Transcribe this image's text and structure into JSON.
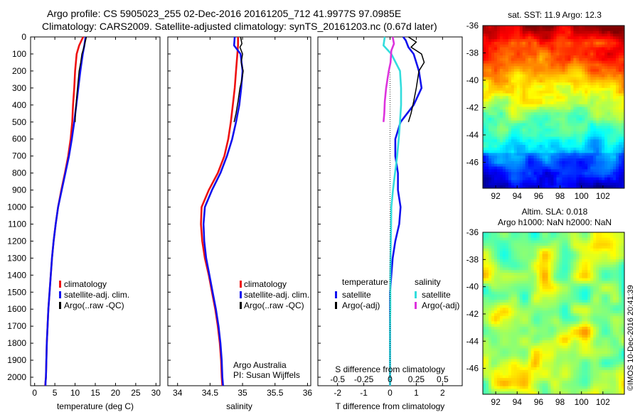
{
  "title": {
    "line1": "Argo profile: CS 5905023_255 02-Dec-2016 20161205_712 41.9977S 97.0985E",
    "line2": "Climatology: CARS2009. Satellite-adjusted climatology: synTS_20161203.nc (0.67d later)"
  },
  "colors": {
    "climatology": "#ee1111",
    "satellite": "#1111ee",
    "argo": "#000000",
    "salinity_satellite": "#33dddd",
    "salinity_argo": "#dd33dd"
  },
  "chart_data": [
    {
      "type": "line",
      "name": "temperature",
      "xlabel": "temperature (deg C)",
      "ylabel": "",
      "xlim": [
        -1,
        31
      ],
      "ylim": [
        2050,
        0
      ],
      "xticks": [
        "0",
        "5",
        "10",
        "15",
        "20",
        "25",
        "30"
      ],
      "yticks": [
        "0",
        "100",
        "200",
        "300",
        "400",
        "500",
        "600",
        "700",
        "800",
        "900",
        "1000",
        "1100",
        "1200",
        "1300",
        "1400",
        "1500",
        "1600",
        "1700",
        "1800",
        "1900",
        "2000"
      ],
      "legend": [
        "climatology",
        "satellite-adj. clim.",
        "Argo(..raw -QC)"
      ],
      "legend_position": "lower-center",
      "series": [
        {
          "name": "climatology",
          "color": "#ee1111",
          "x": [
            12.0,
            11.0,
            10.4,
            10.0,
            9.8,
            9.5,
            9.3,
            8.9,
            8.3,
            7.5,
            6.6,
            5.8,
            5.2,
            4.7,
            4.3,
            4.0,
            3.7,
            3.4,
            3.2,
            3.0,
            2.9,
            2.8,
            2.7,
            2.6
          ],
          "y": [
            0,
            50,
            100,
            200,
            300,
            400,
            500,
            600,
            700,
            800,
            900,
            1000,
            1100,
            1200,
            1300,
            1400,
            1500,
            1600,
            1700,
            1800,
            1900,
            2000,
            2030,
            2050
          ]
        },
        {
          "name": "satellite-adj. clim.",
          "color": "#1111ee",
          "x": [
            12.6,
            12.3,
            11.9,
            11.3,
            10.8,
            10.3,
            9.8,
            9.2,
            8.5,
            7.6,
            6.7,
            5.8,
            5.2,
            4.7,
            4.3,
            4.0,
            3.7,
            3.4,
            3.2,
            3.0,
            2.9,
            2.8,
            2.7,
            2.7
          ],
          "y": [
            0,
            50,
            100,
            200,
            300,
            400,
            500,
            600,
            700,
            800,
            900,
            1000,
            1100,
            1200,
            1300,
            1400,
            1500,
            1600,
            1700,
            1800,
            1900,
            2000,
            2030,
            2050
          ]
        },
        {
          "name": "Argo(..raw -QC)",
          "color": "#000000",
          "x": [
            12.8,
            12.5,
            12.2,
            11.7,
            11.4,
            11.0,
            10.6,
            10.3,
            10.1,
            10.0
          ],
          "y": [
            0,
            30,
            60,
            100,
            150,
            200,
            300,
            380,
            450,
            500
          ]
        }
      ]
    },
    {
      "type": "line",
      "name": "salinity",
      "xlabel": "salinity",
      "ylabel": "",
      "xlim": [
        33.85,
        36.05
      ],
      "ylim": [
        2050,
        0
      ],
      "xticks": [
        "34",
        "34.5",
        "35",
        "35.5",
        "36"
      ],
      "legend": [
        "climatology",
        "satellite-adj. clim.",
        "Argo(..raw -QC)"
      ],
      "legend_position": "lower-right",
      "annotations": [
        "Argo Australia",
        "PI: Susan Wijffels"
      ],
      "series": [
        {
          "name": "climatology",
          "color": "#ee1111",
          "x": [
            34.93,
            34.93,
            34.92,
            34.9,
            34.88,
            34.85,
            34.82,
            34.78,
            34.72,
            34.62,
            34.48,
            34.37,
            34.36,
            34.38,
            34.42,
            34.48,
            34.53,
            34.58,
            34.62,
            34.65,
            34.67,
            34.68,
            34.69
          ],
          "y": [
            0,
            50,
            100,
            200,
            300,
            400,
            500,
            600,
            700,
            800,
            900,
            1000,
            1100,
            1200,
            1300,
            1400,
            1500,
            1600,
            1700,
            1800,
            1900,
            2000,
            2050
          ]
        },
        {
          "name": "satellite-adj. clim.",
          "color": "#1111ee",
          "x": [
            34.88,
            34.87,
            34.97,
            35.0,
            34.98,
            34.95,
            34.9,
            34.84,
            34.76,
            34.66,
            34.53,
            34.42,
            34.4,
            34.41,
            34.44,
            34.49,
            34.54,
            34.59,
            34.63,
            34.66,
            34.68,
            34.69,
            34.7
          ],
          "y": [
            0,
            50,
            100,
            200,
            300,
            400,
            500,
            600,
            700,
            800,
            900,
            1000,
            1100,
            1200,
            1300,
            1400,
            1500,
            1600,
            1700,
            1800,
            1900,
            2000,
            2050
          ]
        },
        {
          "name": "Argo(..raw -QC)",
          "color": "#000000",
          "x": [
            34.97,
            34.99,
            34.96,
            35.0,
            34.98,
            35.01,
            34.99,
            34.96,
            34.93,
            34.9,
            34.87
          ],
          "y": [
            0,
            40,
            60,
            100,
            150,
            200,
            250,
            300,
            380,
            450,
            500
          ]
        }
      ]
    },
    {
      "type": "line",
      "name": "difference",
      "xlabel": "T difference from climatology",
      "x2label": "S difference from climatology",
      "ylabel": "",
      "xlim": [
        -2.75,
        2.75
      ],
      "ylim": [
        2050,
        0
      ],
      "xticks": [
        "-2",
        "-1",
        "0",
        "1",
        "2"
      ],
      "x2ticks": [
        "-0.5",
        "-0.25",
        "0",
        "0.25",
        "0.5"
      ],
      "legend_groups": [
        {
          "heading": "temperature",
          "entries": [
            "satellite",
            "Argo(-adj)"
          ]
        },
        {
          "heading": "salinity",
          "entries": [
            "satellite",
            "Argo(-adj)"
          ]
        }
      ],
      "legend_position": "lower-center",
      "series": [
        {
          "name": "temperature satellite",
          "color": "#1111ee",
          "x": [
            0.5,
            0.6,
            0.7,
            0.9,
            1.1,
            1.2,
            0.9,
            0.4,
            0.2,
            0.2,
            0.3,
            0.3,
            0.4,
            0.35,
            0.2,
            0.1,
            0.05,
            0.0,
            0.0,
            0.0,
            0.0,
            0.0,
            0.0
          ],
          "y": [
            0,
            20,
            60,
            100,
            200,
            300,
            400,
            500,
            600,
            700,
            800,
            900,
            1000,
            1100,
            1200,
            1300,
            1400,
            1500,
            1600,
            1700,
            1800,
            1900,
            2050
          ]
        },
        {
          "name": "temperature Argo(-adj)",
          "color": "#000000",
          "x": [
            0.7,
            1.0,
            0.8,
            1.2,
            1.3,
            1.1,
            1.0,
            0.9,
            0.8,
            0.7
          ],
          "y": [
            0,
            30,
            60,
            100,
            150,
            200,
            300,
            380,
            450,
            500
          ]
        },
        {
          "name": "salinity satellite",
          "color": "#33dddd",
          "x": [
            -0.2,
            -0.25,
            0.05,
            0.38,
            0.42,
            0.42,
            0.38,
            0.33,
            0.27,
            0.19,
            0.11,
            0.05,
            0.04,
            0.03,
            0.02,
            0.01,
            0.01,
            0.01,
            0.0,
            0.0,
            0.0,
            0.0
          ],
          "y": [
            0,
            50,
            100,
            200,
            300,
            400,
            500,
            600,
            700,
            800,
            900,
            1000,
            1100,
            1200,
            1300,
            1400,
            1500,
            1600,
            1700,
            1800,
            1900,
            2050
          ]
        },
        {
          "name": "salinity Argo(-adj)",
          "color": "#dd33dd",
          "x": [
            0.1,
            0.15,
            0.05,
            0.02,
            -0.05,
            -0.1,
            -0.15,
            -0.2,
            -0.22,
            -0.25
          ],
          "y": [
            0,
            40,
            80,
            150,
            200,
            250,
            300,
            380,
            450,
            500
          ]
        }
      ]
    },
    {
      "type": "heatmap",
      "name": "sst-map",
      "title": "sat. SST: 11.9 Argo: 12.3",
      "xticks": [
        "92",
        "94",
        "96",
        "98",
        "100",
        "102"
      ],
      "yticks": [
        "-36",
        "-38",
        "-40",
        "-42",
        "-44",
        "-46"
      ],
      "xlim": [
        90.8,
        104
      ],
      "ylim": [
        -47.9,
        -36
      ]
    },
    {
      "type": "heatmap",
      "name": "sla-map",
      "title": "Altim. SLA: 0.018",
      "subtitle": "Argo h1000: NaN h2000: NaN",
      "xticks": [
        "92",
        "94",
        "96",
        "98",
        "100",
        "102"
      ],
      "yticks": [
        "-36",
        "-38",
        "-40",
        "-42",
        "-44",
        "-46"
      ],
      "xlim": [
        90.8,
        104
      ],
      "ylim": [
        -47.9,
        -36
      ]
    }
  ],
  "side_label": "©IMOS 10-Dec-2016 20:41:39"
}
